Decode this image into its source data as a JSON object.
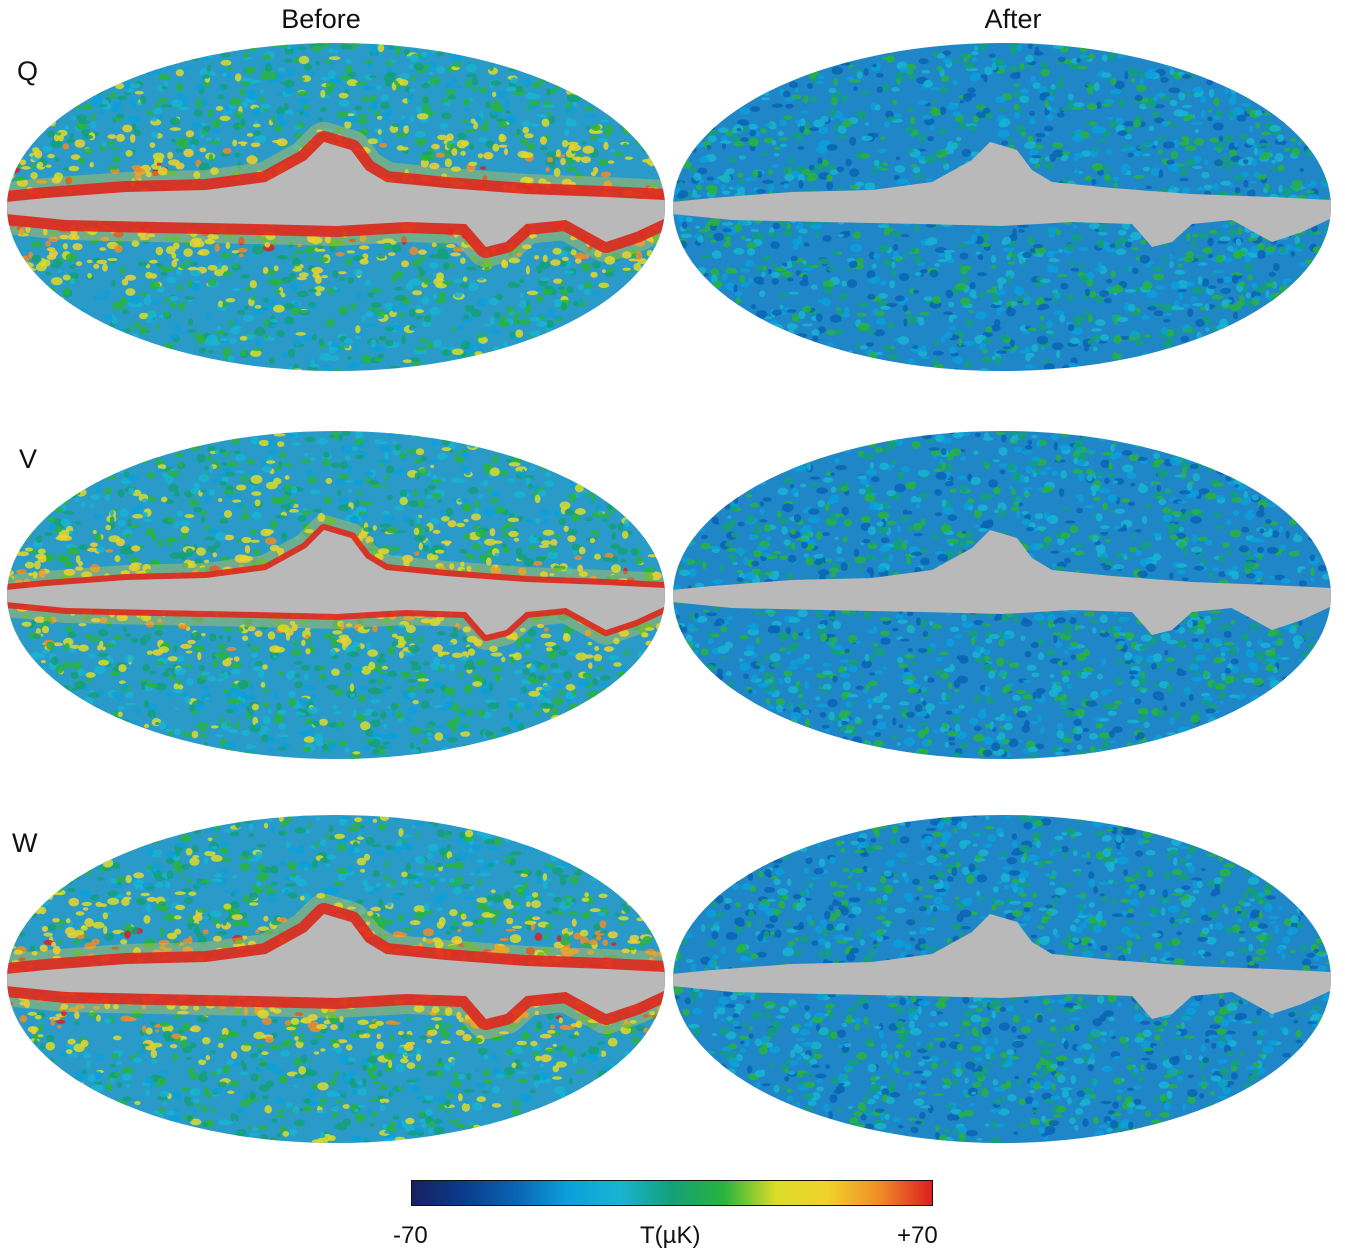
{
  "columns": {
    "before": "Before",
    "after": "After"
  },
  "bands": [
    "Q",
    "V",
    "W"
  ],
  "colorbar": {
    "min_label": "-70",
    "max_label": "+70",
    "unit_label": "T(µK)",
    "stops": [
      "#1a2060",
      "#0a3c8c",
      "#0a64b4",
      "#0aa0dc",
      "#18b4d2",
      "#14a078",
      "#28b43c",
      "#dcdc28",
      "#f0d22a",
      "#f08c28",
      "#dc1e1e"
    ]
  },
  "maps": [
    {
      "band": "Q",
      "state": "before",
      "foreground": "strong",
      "seed": 11
    },
    {
      "band": "Q",
      "state": "after",
      "foreground": "cleaned",
      "seed": 12
    },
    {
      "band": "V",
      "state": "before",
      "foreground": "moderate",
      "seed": 21
    },
    {
      "band": "V",
      "state": "after",
      "foreground": "cleaned",
      "seed": 22
    },
    {
      "band": "W",
      "state": "before",
      "foreground": "strong",
      "seed": 31
    },
    {
      "band": "W",
      "state": "after",
      "foreground": "cleaned",
      "seed": 32
    }
  ],
  "mask_color": "#b8b9b8"
}
